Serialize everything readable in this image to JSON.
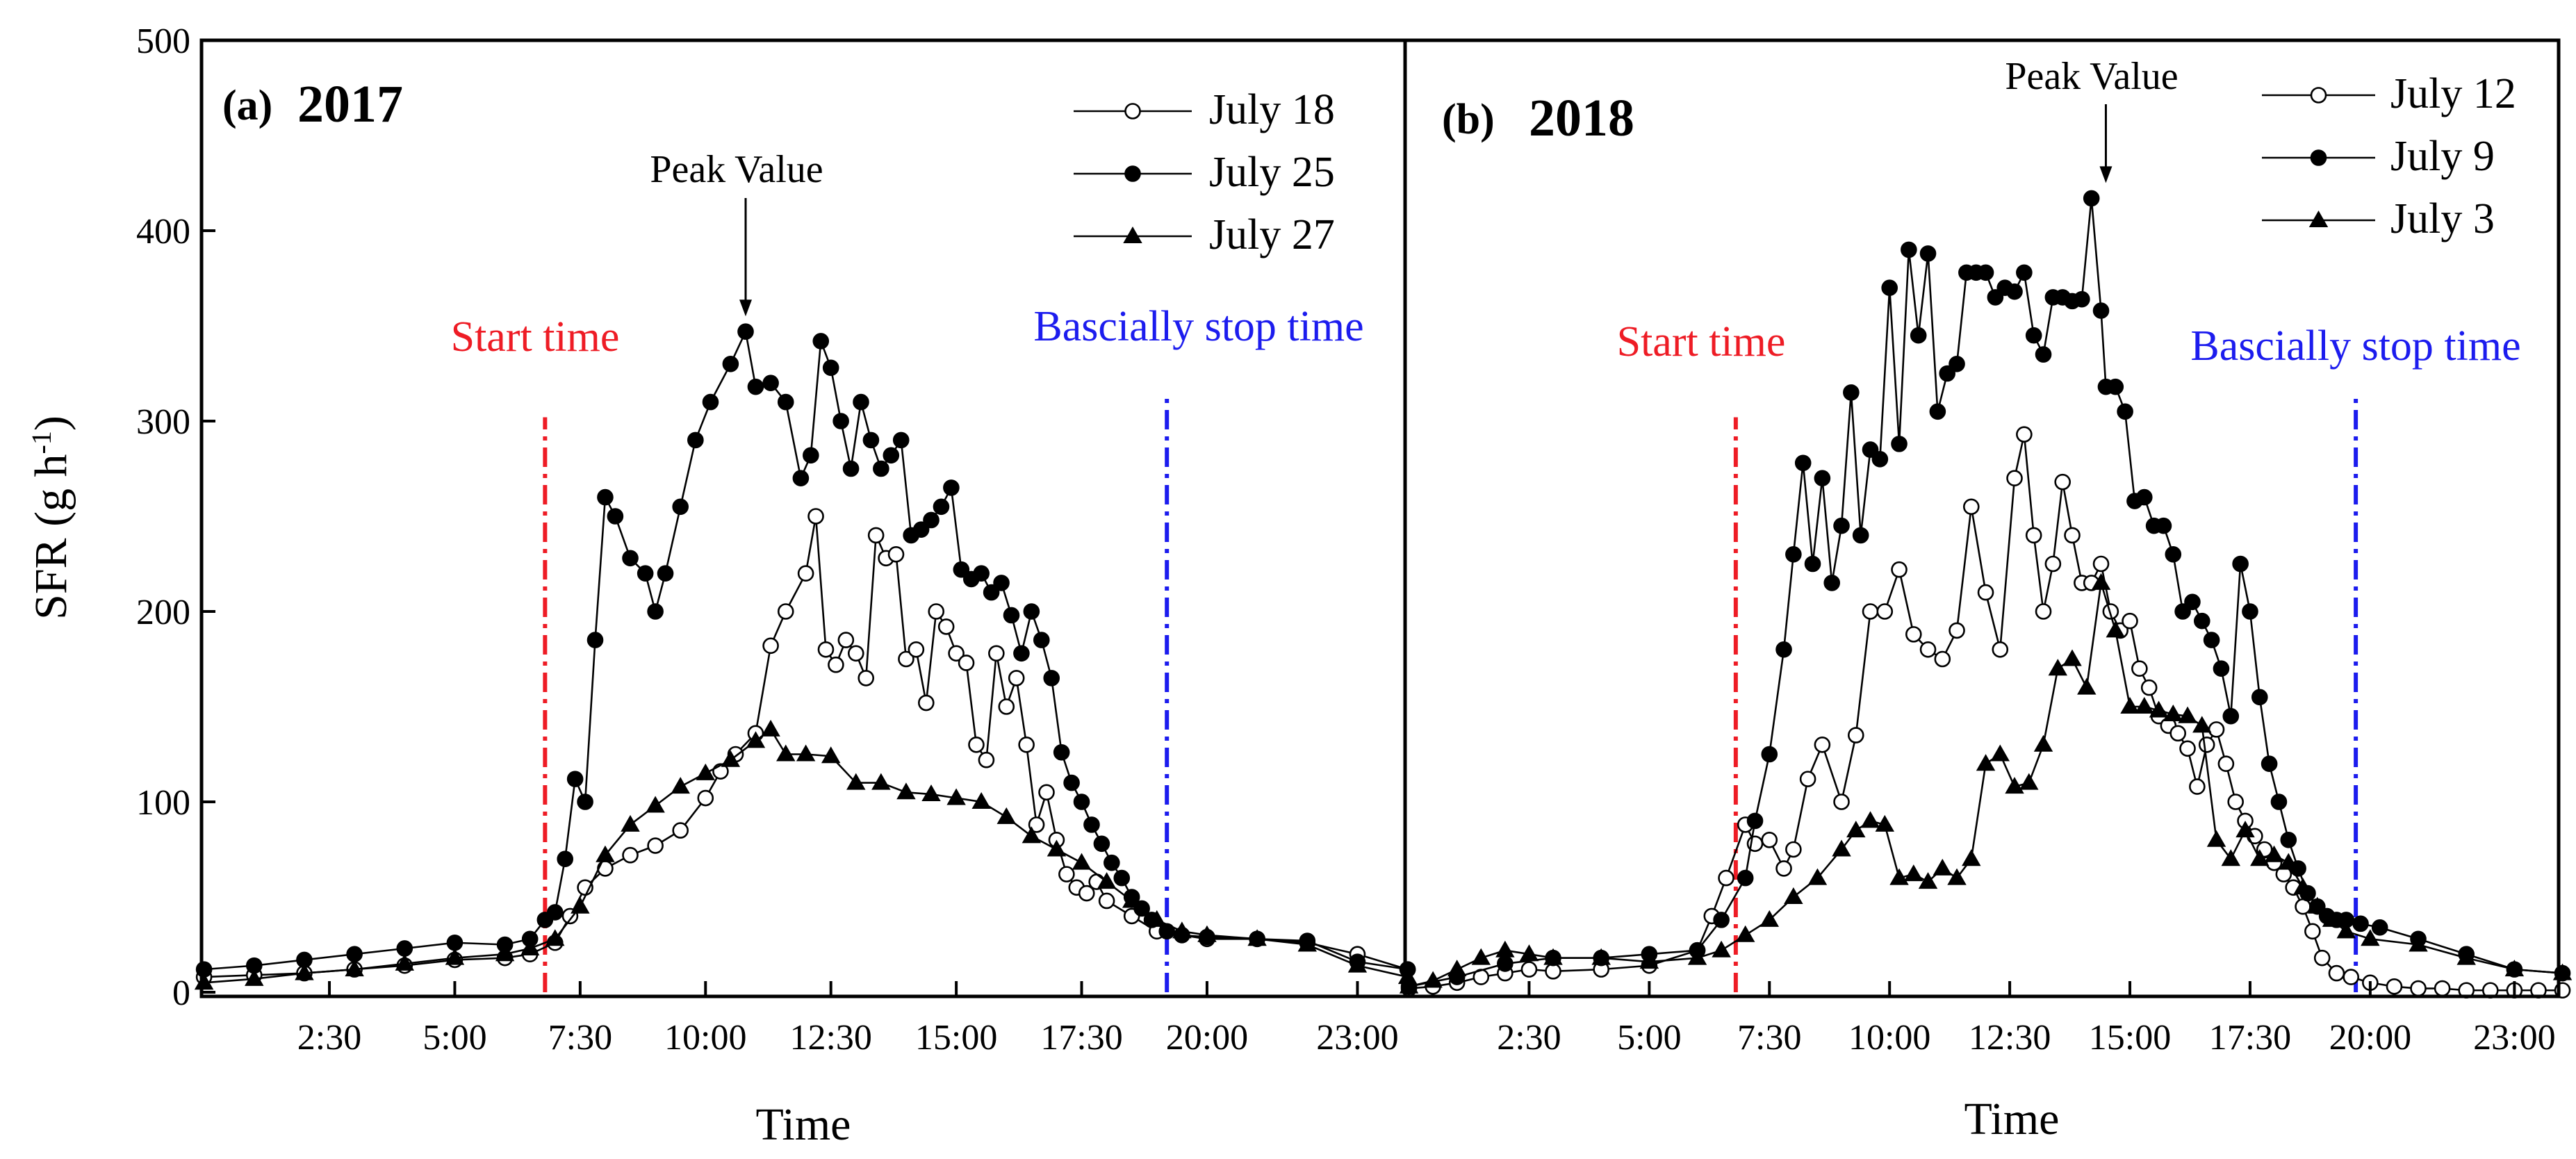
{
  "chart_data": [
    {
      "type": "line",
      "panel_label": "(a)",
      "panel_year": "2017",
      "xlabel": "Time",
      "ylabel": "SFR (g h",
      "ylabel_sup": "-1",
      "ylabel_close": ")",
      "xlim": [
        0,
        24
      ],
      "ylim": [
        0,
        500
      ],
      "yticks": [
        "0",
        "100",
        "200",
        "300",
        "400",
        "500"
      ],
      "xticks": [
        "2:30",
        "5:00",
        "7:30",
        "10:00",
        "12:30",
        "15:00",
        "17:30",
        "20:00",
        "23:00"
      ],
      "peak_label": "Peak Value",
      "start_label": "Start time",
      "stop_label": "Bascially stop time",
      "start_hour": 6.8,
      "stop_hour": 19.2,
      "peak_hour": 10.8,
      "peak_value": 347,
      "series": [
        {
          "name": "July 18",
          "marker": "open-circle",
          "x": [
            0,
            1,
            2,
            3,
            4,
            5,
            6,
            6.5,
            7,
            7.3,
            7.6,
            8,
            8.5,
            9,
            9.5,
            10,
            10.3,
            10.6,
            11,
            11.3,
            11.6,
            12,
            12.2,
            12.4,
            12.6,
            12.8,
            13,
            13.2,
            13.4,
            13.6,
            13.8,
            14,
            14.2,
            14.4,
            14.6,
            14.8,
            15,
            15.2,
            15.4,
            15.6,
            15.8,
            16,
            16.2,
            16.4,
            16.6,
            16.8,
            17,
            17.2,
            17.4,
            17.6,
            17.8,
            18,
            18.5,
            19,
            19.5,
            20,
            21,
            22,
            23,
            24
          ],
          "y": [
            8,
            9,
            10,
            12,
            14,
            17,
            18,
            20,
            26,
            40,
            55,
            65,
            72,
            77,
            85,
            102,
            116,
            125,
            136,
            182,
            200,
            220,
            250,
            180,
            172,
            185,
            178,
            165,
            240,
            228,
            230,
            175,
            180,
            152,
            200,
            192,
            178,
            173,
            130,
            122,
            178,
            150,
            165,
            130,
            88,
            105,
            80,
            62,
            55,
            52,
            58,
            48,
            40,
            32,
            30,
            28,
            28,
            26,
            20,
            12
          ]
        },
        {
          "name": "July 25",
          "marker": "filled-circle",
          "x": [
            0,
            1,
            2,
            3,
            4,
            5,
            6,
            6.5,
            6.8,
            7,
            7.2,
            7.4,
            7.6,
            7.8,
            8,
            8.2,
            8.5,
            8.8,
            9,
            9.2,
            9.5,
            9.8,
            10.1,
            10.5,
            10.8,
            11,
            11.3,
            11.6,
            11.9,
            12.1,
            12.3,
            12.5,
            12.7,
            12.9,
            13.1,
            13.3,
            13.5,
            13.7,
            13.9,
            14.1,
            14.3,
            14.5,
            14.7,
            14.9,
            15.1,
            15.3,
            15.5,
            15.7,
            15.9,
            16.1,
            16.3,
            16.5,
            16.7,
            16.9,
            17.1,
            17.3,
            17.5,
            17.7,
            17.9,
            18.1,
            18.3,
            18.5,
            18.7,
            18.9,
            19.2,
            19.5,
            20,
            21,
            22,
            23,
            24
          ],
          "y": [
            12,
            14,
            17,
            20,
            23,
            26,
            25,
            28,
            38,
            42,
            70,
            112,
            100,
            185,
            260,
            250,
            228,
            220,
            200,
            220,
            255,
            290,
            310,
            330,
            347,
            318,
            320,
            310,
            270,
            282,
            342,
            328,
            300,
            275,
            310,
            290,
            275,
            282,
            290,
            240,
            243,
            248,
            255,
            265,
            222,
            217,
            220,
            210,
            215,
            198,
            178,
            200,
            185,
            165,
            126,
            110,
            100,
            88,
            78,
            68,
            60,
            50,
            44,
            38,
            32,
            30,
            29,
            28,
            27,
            16,
            12
          ]
        },
        {
          "name": "July 27",
          "marker": "filled-triangle",
          "x": [
            0,
            1,
            2,
            3,
            4,
            5,
            6,
            6.5,
            7,
            7.5,
            8,
            8.5,
            9,
            9.5,
            10,
            10.5,
            11,
            11.3,
            11.6,
            12,
            12.5,
            13,
            13.5,
            14,
            14.5,
            15,
            15.5,
            16,
            16.5,
            17,
            17.5,
            18,
            18.5,
            19,
            19.5,
            20,
            21,
            22,
            23,
            24
          ],
          "y": [
            5,
            7,
            10,
            12,
            15,
            18,
            20,
            23,
            28,
            45,
            72,
            88,
            98,
            108,
            115,
            122,
            132,
            138,
            125,
            125,
            124,
            110,
            110,
            105,
            104,
            102,
            100,
            92,
            82,
            75,
            68,
            58,
            48,
            38,
            32,
            30,
            28,
            25,
            14,
            8
          ]
        }
      ]
    },
    {
      "type": "line",
      "panel_label": "(b)",
      "panel_year": "2018",
      "xlabel": "Time",
      "xlim": [
        0,
        24
      ],
      "ylim": [
        0,
        500
      ],
      "xticks": [
        "2:30",
        "5:00",
        "7:30",
        "10:00",
        "12:30",
        "15:00",
        "17:30",
        "20:00",
        "23:00"
      ],
      "peak_label": "Peak Value",
      "start_label": "Start time",
      "stop_label": "Bascially stop time",
      "start_hour": 6.8,
      "stop_hour": 19.7,
      "peak_hour": 14.5,
      "peak_value": 417,
      "series": [
        {
          "name": "July 12",
          "marker": "open-circle",
          "x": [
            0,
            0.5,
            1,
            1.5,
            2,
            2.5,
            3,
            4,
            5,
            6,
            6.3,
            6.6,
            7,
            7.2,
            7.5,
            7.8,
            8,
            8.3,
            8.6,
            9,
            9.3,
            9.6,
            9.9,
            10.2,
            10.5,
            10.8,
            11.1,
            11.4,
            11.7,
            12,
            12.3,
            12.6,
            12.8,
            13,
            13.2,
            13.4,
            13.6,
            13.8,
            14,
            14.2,
            14.4,
            14.6,
            14.8,
            15,
            15.2,
            15.4,
            15.6,
            15.8,
            16,
            16.2,
            16.4,
            16.6,
            16.8,
            17,
            17.2,
            17.4,
            17.6,
            17.8,
            18,
            18.2,
            18.4,
            18.6,
            18.8,
            19,
            19.3,
            19.6,
            20,
            20.5,
            21,
            21.5,
            22,
            22.5,
            23,
            23.5,
            24
          ],
          "y": [
            2,
            3,
            5,
            8,
            10,
            12,
            11,
            12,
            14,
            22,
            40,
            60,
            88,
            78,
            80,
            65,
            75,
            112,
            130,
            100,
            135,
            200,
            200,
            222,
            188,
            180,
            175,
            190,
            255,
            210,
            180,
            270,
            293,
            240,
            200,
            225,
            268,
            240,
            215,
            215,
            225,
            200,
            190,
            195,
            170,
            160,
            145,
            140,
            136,
            128,
            108,
            130,
            138,
            120,
            100,
            90,
            82,
            75,
            68,
            62,
            55,
            45,
            32,
            18,
            10,
            8,
            5,
            3,
            2,
            2,
            1,
            1,
            1,
            1,
            1
          ]
        },
        {
          "name": "July 9",
          "marker": "filled-circle",
          "x": [
            0,
            1,
            2,
            3,
            4,
            5,
            6,
            6.5,
            7,
            7.2,
            7.5,
            7.8,
            8,
            8.2,
            8.4,
            8.6,
            8.8,
            9,
            9.2,
            9.4,
            9.6,
            9.8,
            10,
            10.2,
            10.4,
            10.6,
            10.8,
            11,
            11.2,
            11.4,
            11.6,
            11.8,
            12,
            12.2,
            12.4,
            12.6,
            12.8,
            13,
            13.2,
            13.4,
            13.6,
            13.8,
            14,
            14.2,
            14.4,
            14.5,
            14.7,
            14.9,
            15.1,
            15.3,
            15.5,
            15.7,
            15.9,
            16.1,
            16.3,
            16.5,
            16.7,
            16.9,
            17.1,
            17.3,
            17.5,
            17.7,
            17.9,
            18.1,
            18.3,
            18.5,
            18.7,
            18.9,
            19.1,
            19.3,
            19.5,
            19.8,
            20.2,
            21,
            22,
            23,
            24
          ],
          "y": [
            3,
            8,
            15,
            18,
            18,
            20,
            22,
            38,
            60,
            90,
            125,
            180,
            230,
            278,
            225,
            270,
            215,
            245,
            315,
            240,
            285,
            280,
            370,
            288,
            390,
            345,
            388,
            305,
            325,
            330,
            378,
            378,
            378,
            365,
            370,
            368,
            378,
            345,
            335,
            365,
            365,
            363,
            364,
            417,
            358,
            318,
            318,
            305,
            258,
            260,
            245,
            245,
            230,
            200,
            205,
            195,
            185,
            170,
            145,
            225,
            200,
            155,
            120,
            100,
            80,
            65,
            52,
            45,
            40,
            38,
            38,
            36,
            34,
            28,
            20,
            12,
            10
          ]
        },
        {
          "name": "July 3",
          "marker": "filled-triangle",
          "x": [
            0,
            0.5,
            1,
            1.5,
            2,
            2.5,
            3,
            4,
            5,
            6,
            6.5,
            7,
            7.5,
            8,
            8.5,
            9,
            9.3,
            9.6,
            9.9,
            10.2,
            10.5,
            10.8,
            11.1,
            11.4,
            11.7,
            12,
            12.3,
            12.6,
            12.9,
            13.2,
            13.5,
            13.8,
            14.1,
            14.4,
            14.7,
            15,
            15.3,
            15.6,
            15.9,
            16.2,
            16.5,
            16.8,
            17.1,
            17.4,
            17.7,
            18,
            18.3,
            18.6,
            18.9,
            19.2,
            19.5,
            20,
            21,
            22,
            23,
            24
          ],
          "y": [
            3,
            6,
            12,
            18,
            22,
            20,
            18,
            18,
            16,
            18,
            22,
            30,
            38,
            50,
            60,
            75,
            85,
            90,
            88,
            60,
            62,
            58,
            65,
            60,
            70,
            120,
            125,
            108,
            110,
            130,
            170,
            175,
            160,
            215,
            190,
            150,
            150,
            148,
            146,
            145,
            140,
            80,
            70,
            85,
            70,
            72,
            68,
            55,
            45,
            38,
            32,
            28,
            25,
            18,
            12,
            10
          ]
        }
      ]
    }
  ]
}
